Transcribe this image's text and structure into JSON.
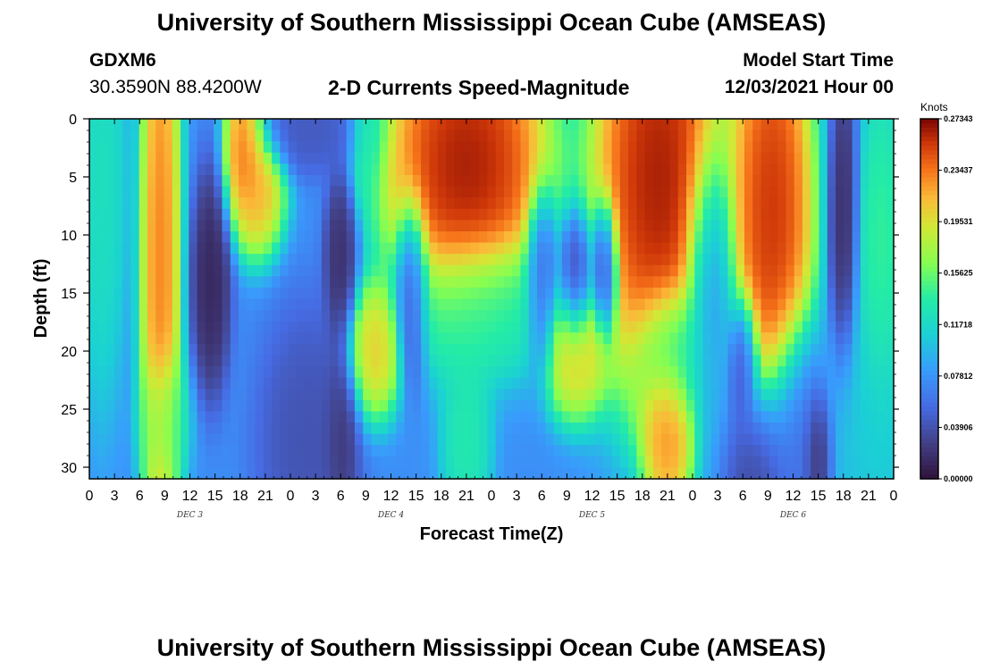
{
  "header": {
    "title": "University of Southern Mississippi Ocean Cube (AMSEAS)",
    "station_id": "GDXM6",
    "coordinates": "30.3590N  88.4200W",
    "plot_title": "2-D Currents Speed-Magnitude",
    "model_label": "Model Start Time",
    "model_time": "12/03/2021 Hour 00"
  },
  "footer": {
    "title": "University of Southern Mississippi Ocean Cube (AMSEAS)"
  },
  "chart_data": {
    "type": "heatmap",
    "title": "2-D Currents Speed-Magnitude",
    "xlabel": "Forecast Time(Z)",
    "ylabel": "Depth (ft)",
    "x_range_hours": [
      0,
      96
    ],
    "x_tick_labels": [
      "0",
      "3",
      "6",
      "9",
      "12",
      "15",
      "18",
      "21",
      "0",
      "3",
      "6",
      "9",
      "12",
      "15",
      "18",
      "21",
      "0",
      "3",
      "6",
      "9",
      "12",
      "15",
      "18",
      "21",
      "0",
      "3",
      "6",
      "9",
      "12",
      "15",
      "18",
      "21",
      "0"
    ],
    "day_labels": [
      {
        "label": "DEC 3",
        "hour": 12
      },
      {
        "label": "DEC 4",
        "hour": 36
      },
      {
        "label": "DEC 5",
        "hour": 60
      },
      {
        "label": "DEC 6",
        "hour": 84
      }
    ],
    "y_range": [
      0,
      31
    ],
    "y_ticks": [
      0,
      5,
      10,
      15,
      20,
      25,
      30
    ],
    "y_inverted": true,
    "colorbar": {
      "unit": "Knots",
      "min": 0,
      "max": 0.27343,
      "tick_labels": [
        "0.27343",
        "0.23437",
        "0.19531",
        "0.15625",
        "0.11718",
        "0.07812",
        "0.03906",
        "0.00000"
      ]
    },
    "features": [
      {
        "hour": 1.5,
        "depth": 5,
        "value": 0.13,
        "sx": 1.5,
        "sy": 10
      },
      {
        "hour": 8.5,
        "depth": 12,
        "value": 0.25,
        "sx": 1.2,
        "sy": 15
      },
      {
        "hour": 9,
        "depth": 26,
        "value": 0.14,
        "sx": 1.5,
        "sy": 3
      },
      {
        "hour": 18.5,
        "depth": 2,
        "value": 0.26,
        "sx": 1.2,
        "sy": 3
      },
      {
        "hour": 20,
        "depth": 6,
        "value": 0.23,
        "sx": 1.7,
        "sy": 3
      },
      {
        "hour": 14.5,
        "depth": 14,
        "value": 0.005,
        "sx": 1.2,
        "sy": 5
      },
      {
        "hour": 26,
        "depth": 1,
        "value": 0.04,
        "sx": 3.5,
        "sy": 2
      },
      {
        "hour": 26,
        "depth": 28,
        "value": 0.035,
        "sx": 3,
        "sy": 6
      },
      {
        "hour": 30,
        "depth": 12,
        "value": 0.01,
        "sx": 1,
        "sy": 4
      },
      {
        "hour": 30,
        "depth": 28,
        "value": 0.015,
        "sx": 1,
        "sy": 4
      },
      {
        "hour": 33,
        "depth": 2,
        "value": 0.14,
        "sx": 1,
        "sy": 3
      },
      {
        "hour": 34,
        "depth": 20,
        "value": 0.22,
        "sx": 1.6,
        "sy": 3
      },
      {
        "hour": 38.5,
        "depth": 15,
        "value": 0.02,
        "sx": 1,
        "sy": 4
      },
      {
        "hour": 45,
        "depth": 4,
        "value": 0.29,
        "sx": 5,
        "sy": 7
      },
      {
        "hour": 45,
        "depth": 28,
        "value": 0.14,
        "sx": 1.5,
        "sy": 4
      },
      {
        "hour": 47,
        "depth": 16,
        "value": 0.13,
        "sx": 5,
        "sy": 3
      },
      {
        "hour": 54,
        "depth": 14,
        "value": 0.03,
        "sx": 1,
        "sy": 4
      },
      {
        "hour": 58,
        "depth": 20,
        "value": 0.22,
        "sx": 2,
        "sy": 3
      },
      {
        "hour": 58,
        "depth": 14,
        "value": 0.02,
        "sx": 1,
        "sy": 3
      },
      {
        "hour": 61.5,
        "depth": 13,
        "value": 0.01,
        "sx": 0.8,
        "sy": 3
      },
      {
        "hour": 68,
        "depth": 5,
        "value": 0.29,
        "sx": 4,
        "sy": 10
      },
      {
        "hour": 69,
        "depth": 27,
        "value": 0.24,
        "sx": 1.5,
        "sy": 4
      },
      {
        "hour": 70,
        "depth": 20,
        "value": 0.11,
        "sx": 2.5,
        "sy": 3
      },
      {
        "hour": 74,
        "depth": 14,
        "value": 0.06,
        "sx": 1.5,
        "sy": 6
      },
      {
        "hour": 78,
        "depth": 21,
        "value": 0.02,
        "sx": 1,
        "sy": 3
      },
      {
        "hour": 80,
        "depth": 30,
        "value": 0.02,
        "sx": 2,
        "sy": 4
      },
      {
        "hour": 81.5,
        "depth": 8,
        "value": 0.28,
        "sx": 2.5,
        "sy": 10
      },
      {
        "hour": 84.5,
        "depth": 27,
        "value": 0.05,
        "sx": 2,
        "sy": 5
      },
      {
        "hour": 87,
        "depth": 29,
        "value": 0.0,
        "sx": 0.9,
        "sy": 3
      },
      {
        "hour": 90,
        "depth": 9,
        "value": 0.01,
        "sx": 0.9,
        "sy": 7
      },
      {
        "hour": 94.5,
        "depth": 12,
        "value": 0.15,
        "sx": 1.5,
        "sy": 8
      },
      {
        "hour": 93,
        "depth": 27,
        "value": 0.11,
        "sx": 3,
        "sy": 6
      }
    ]
  }
}
